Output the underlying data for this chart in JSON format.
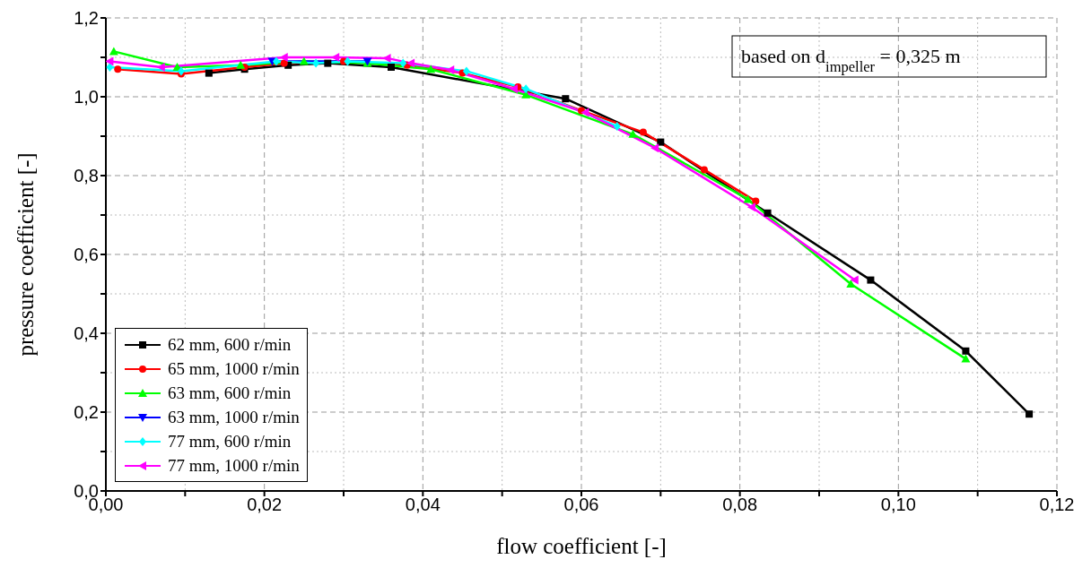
{
  "chart_data": {
    "type": "line",
    "xlabel": "flow coefficient [-]",
    "ylabel": "pressure coefficient [-]",
    "annotations": [
      "based on d$_{impeller}$ = 0,325 m"
    ],
    "xlim": [
      0,
      0.12
    ],
    "ylim": [
      0,
      1.2
    ],
    "xticks": [
      {
        "value": 0,
        "label": "0,00"
      },
      {
        "value": 0.01,
        "label": null
      },
      {
        "value": 0.02,
        "label": "0,02"
      },
      {
        "value": 0.03,
        "label": null
      },
      {
        "value": 0.04,
        "label": "0,04"
      },
      {
        "value": 0.05,
        "label": null
      },
      {
        "value": 0.06,
        "label": "0,06"
      },
      {
        "value": 0.07,
        "label": null
      },
      {
        "value": 0.08,
        "label": "0,08"
      },
      {
        "value": 0.09,
        "label": null
      },
      {
        "value": 0.1,
        "label": "0,10"
      },
      {
        "value": 0.11,
        "label": null
      },
      {
        "value": 0.12,
        "label": "0,12"
      }
    ],
    "yticks": [
      {
        "value": 0,
        "label": "0,0"
      },
      {
        "value": 0.1,
        "label": null
      },
      {
        "value": 0.2,
        "label": "0,2"
      },
      {
        "value": 0.3,
        "label": null
      },
      {
        "value": 0.4,
        "label": "0,4"
      },
      {
        "value": 0.5,
        "label": null
      },
      {
        "value": 0.6,
        "label": "0,6"
      },
      {
        "value": 0.7,
        "label": null
      },
      {
        "value": 0.8,
        "label": "0,8"
      },
      {
        "value": 0.9,
        "label": null
      },
      {
        "value": 1.0,
        "label": "1,0"
      },
      {
        "value": 1.1,
        "label": null
      },
      {
        "value": 1.2,
        "label": "1,2"
      }
    ],
    "grid": true,
    "legend": "bottom left",
    "line_style": "solid",
    "series": [
      {
        "name": "62 mm, 600 r/min",
        "color": "#000000",
        "marker": "square",
        "x": [
          0.013,
          0.0175,
          0.023,
          0.028,
          0.036,
          0.058,
          0.07,
          0.0835,
          0.0965,
          0.1085,
          0.1165
        ],
        "values": [
          1.06,
          1.07,
          1.08,
          1.085,
          1.075,
          0.995,
          0.885,
          0.705,
          0.535,
          0.355,
          0.195
        ]
      },
      {
        "name": "65 mm, 1000 r/min",
        "color": "#ff0000",
        "marker": "circle",
        "x": [
          0.0015,
          0.0095,
          0.0175,
          0.0225,
          0.03,
          0.038,
          0.045,
          0.052,
          0.06,
          0.0678,
          0.0755,
          0.082
        ],
        "values": [
          1.07,
          1.058,
          1.075,
          1.085,
          1.09,
          1.08,
          1.06,
          1.025,
          0.965,
          0.91,
          0.815,
          0.735
        ]
      },
      {
        "name": "63 mm, 600 r/min",
        "color": "#00ff00",
        "marker": "triangle",
        "x": [
          0.001,
          0.009,
          0.017,
          0.025,
          0.033,
          0.041,
          0.053,
          0.0665,
          0.081,
          0.094,
          0.1085
        ],
        "values": [
          1.115,
          1.075,
          1.08,
          1.09,
          1.085,
          1.07,
          1.005,
          0.905,
          0.74,
          0.525,
          0.335
        ]
      },
      {
        "name": "63 mm, 1000 r/min",
        "color": "#0000ff",
        "marker": "triangle-down",
        "x": [
          0.021,
          0.033
        ],
        "values": [
          1.09,
          1.09
        ]
      },
      {
        "name": "77 mm, 600 r/min",
        "color": "#00ffff",
        "marker": "diamond",
        "x": [
          0.0005,
          0.0095,
          0.0215,
          0.0265,
          0.0305,
          0.0375,
          0.0455,
          0.053,
          0.0645
        ],
        "values": [
          1.075,
          1.065,
          1.09,
          1.085,
          1.09,
          1.085,
          1.065,
          1.02,
          0.925
        ]
      },
      {
        "name": "77 mm, 1000 r/min",
        "color": "#ff00ff",
        "marker": "triangle-left",
        "x": [
          0.0005,
          0.007,
          0.0225,
          0.029,
          0.0355,
          0.0385,
          0.0435,
          0.0515,
          0.0605,
          0.0693,
          0.0815,
          0.0945
        ],
        "values": [
          1.09,
          1.075,
          1.1,
          1.1,
          1.098,
          1.085,
          1.068,
          1.02,
          0.96,
          0.87,
          0.72,
          0.535
        ]
      }
    ]
  }
}
